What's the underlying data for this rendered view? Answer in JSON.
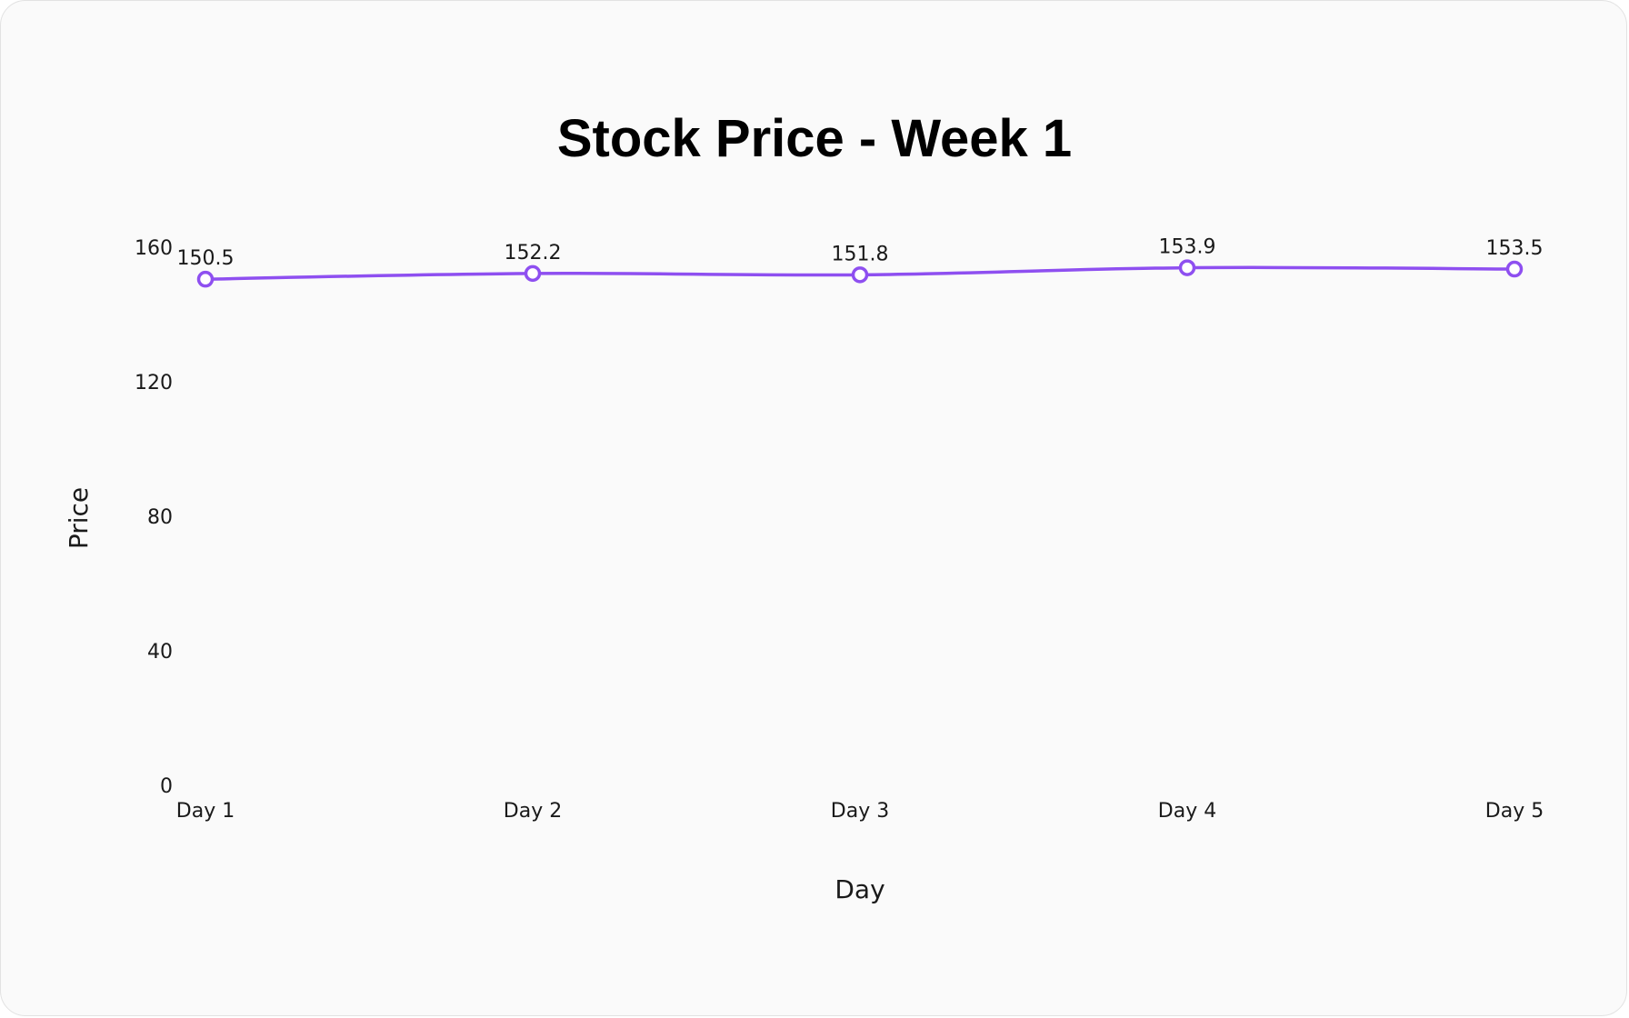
{
  "chart_data": {
    "type": "line",
    "title": "Stock Price - Week 1",
    "xlabel": "Day",
    "ylabel": "Price",
    "categories": [
      "Day 1",
      "Day 2",
      "Day 3",
      "Day 4",
      "Day 5"
    ],
    "series": [
      {
        "values": [
          150.5,
          152.2,
          151.8,
          153.9,
          153.5
        ],
        "color": "#8e4ff0"
      }
    ],
    "ylim": [
      0,
      160
    ],
    "yticks": [
      0,
      40,
      80,
      120,
      160
    ],
    "grid": false,
    "legend": "none",
    "data_labels": true
  }
}
